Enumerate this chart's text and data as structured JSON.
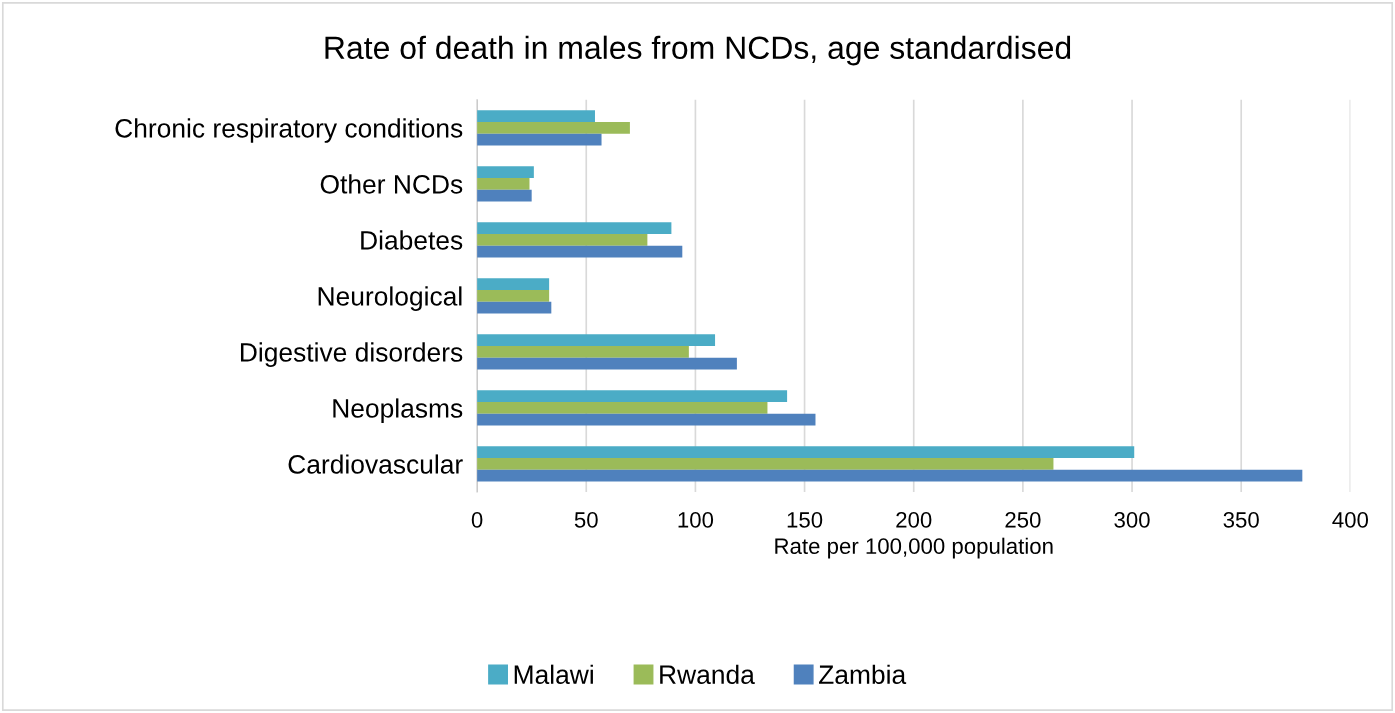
{
  "chart_data": {
    "type": "bar",
    "orientation": "horizontal",
    "title": "Rate of death in males from NCDs, age standardised",
    "xlabel": "Rate per 100,000 population",
    "categories": [
      "Chronic respiratory conditions",
      "Other NCDs",
      "Diabetes",
      "Neurological",
      "Digestive disorders",
      "Neoplasms",
      "Cardiovascular"
    ],
    "series": [
      {
        "name": "Malawi",
        "color": "#4bacc6",
        "values": [
          54,
          26,
          89,
          33,
          109,
          142,
          301
        ]
      },
      {
        "name": "Rwanda",
        "color": "#9bbb59",
        "values": [
          70,
          24,
          78,
          33,
          97,
          133,
          264
        ]
      },
      {
        "name": "Zambia",
        "color": "#4f81bd",
        "values": [
          57,
          25,
          94,
          34,
          119,
          155,
          378
        ]
      }
    ],
    "xlim": [
      0,
      400
    ],
    "xticks": [
      0,
      50,
      100,
      150,
      200,
      250,
      300,
      350,
      400
    ],
    "grid": "x",
    "legend": "bottom"
  }
}
